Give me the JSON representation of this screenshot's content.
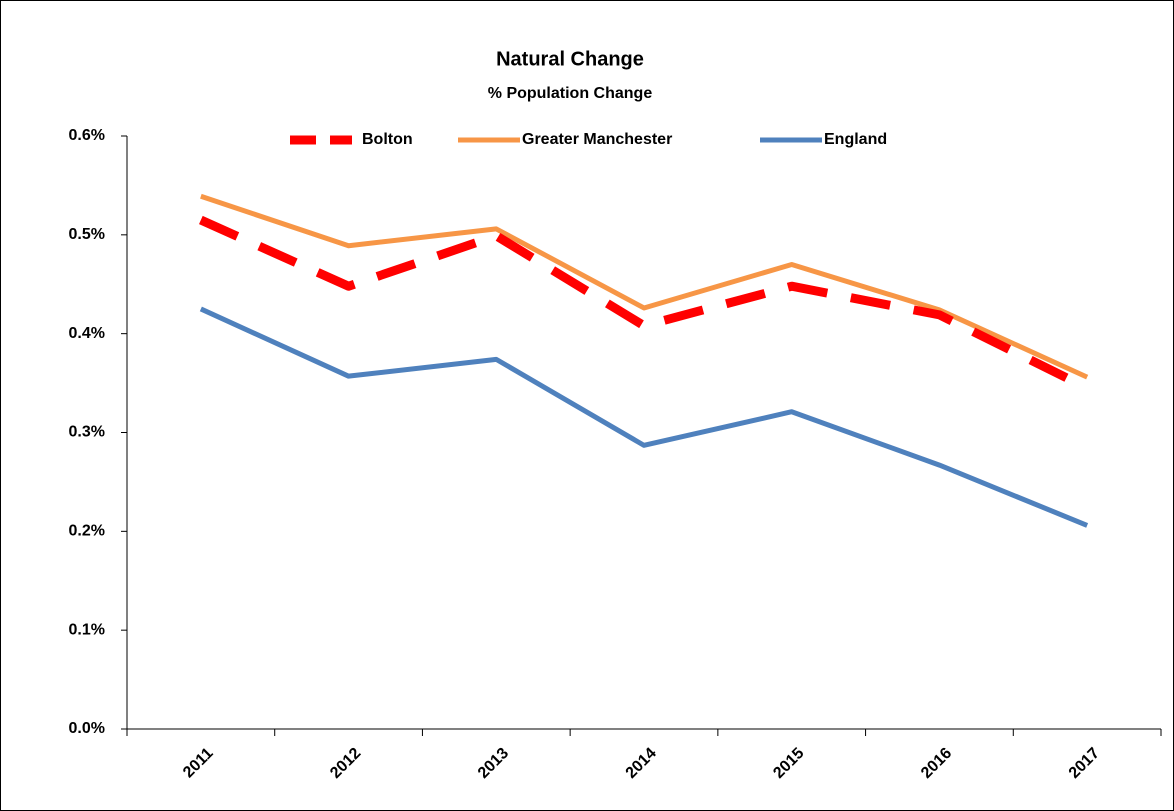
{
  "chart_data": {
    "type": "line",
    "title": "Natural Change",
    "subtitle": "% Population Change",
    "categories": [
      "2011",
      "2012",
      "2013",
      "2014",
      "2015",
      "2016",
      "2017"
    ],
    "series": [
      {
        "name": "Bolton",
        "color": "#ff0000",
        "dashed": true,
        "values": [
          0.515,
          0.448,
          0.499,
          0.408,
          0.448,
          0.419,
          0.345
        ]
      },
      {
        "name": "Greater Manchester",
        "color": "#f79646",
        "dashed": false,
        "values": [
          0.539,
          0.489,
          0.506,
          0.426,
          0.47,
          0.424,
          0.356
        ]
      },
      {
        "name": "England",
        "color": "#4f81bd",
        "dashed": false,
        "values": [
          0.425,
          0.357,
          0.374,
          0.287,
          0.321,
          0.267,
          0.206
        ]
      }
    ],
    "ylim": [
      0,
      0.6
    ],
    "yticks": [
      {
        "value": 0,
        "label": "0.0%"
      },
      {
        "value": 0.1,
        "label": "0.1%"
      },
      {
        "value": 0.2,
        "label": "0.2%"
      },
      {
        "value": 0.3,
        "label": "0.3%"
      },
      {
        "value": 0.4,
        "label": "0.4%"
      },
      {
        "value": 0.5,
        "label": "0.5%"
      },
      {
        "value": 0.6,
        "label": "0.6%"
      }
    ],
    "legend": "top",
    "grid": false
  }
}
